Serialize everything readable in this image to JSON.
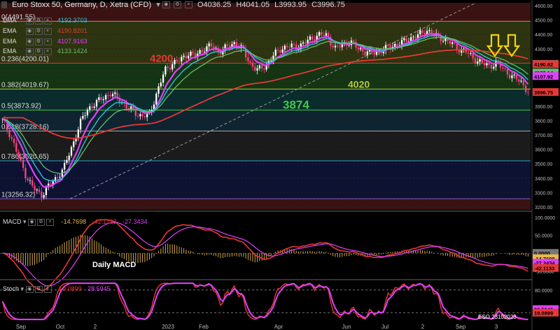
{
  "header": {
    "title": "Euro Stoxx 50, Germany, D, Xetra (CFD)",
    "open": "O4036.25",
    "high": "H4041.05",
    "low": "L3993.95",
    "close": "C3996.75"
  },
  "ema_rows": [
    {
      "label": "EMA",
      "value": "4192.3703",
      "color": "#26c6da"
    },
    {
      "label": "EMA",
      "value": "4190.8201",
      "color": "#e53935"
    },
    {
      "label": "EMA",
      "value": "4107.9163",
      "color": "#e040fb"
    },
    {
      "label": "EMA",
      "value": "4133.1424",
      "color": "#66bb6a"
    }
  ],
  "chart_data": [
    {
      "type": "candlestick",
      "pane": "price",
      "x_labels": [
        "Sep",
        "Oct",
        "2",
        "2023",
        "Feb",
        "Apr",
        "Jun",
        "Jul",
        "2",
        "Sep",
        "3"
      ],
      "y_ticks": [
        "4600.00",
        "4500.00",
        "4400.00",
        "4300.00",
        "4200.00",
        "4100.00",
        "4000.00",
        "3900.00",
        "3800.00",
        "3700.00",
        "3600.00",
        "3500.00",
        "3400.00",
        "3300.00",
        "3200.00"
      ],
      "ylim": [
        3180,
        4620
      ],
      "close_path": [
        3800,
        3700,
        3560,
        3420,
        3330,
        3280,
        3350,
        3400,
        3480,
        3620,
        3780,
        3880,
        3920,
        3960,
        3990,
        3950,
        3900,
        3860,
        3830,
        3840,
        4000,
        4150,
        4200,
        4220,
        4270,
        4250,
        4300,
        4320,
        4280,
        4310,
        4340,
        4300,
        4200,
        4150,
        4180,
        4250,
        4300,
        4320,
        4310,
        4340,
        4370,
        4400,
        4390,
        4300,
        4330,
        4350,
        4300,
        4280,
        4270,
        4290,
        4310,
        4330,
        4350,
        4380,
        4400,
        4430,
        4390,
        4370,
        4340,
        4300,
        4280,
        4230,
        4200,
        4180,
        4200,
        4150,
        4100,
        4080,
        3996.75
      ],
      "fib_levels": [
        {
          "ratio": "0.236",
          "value": "(4200.01)",
          "price": 4200.01
        },
        {
          "ratio": "0.382",
          "value": "(4019.67)",
          "price": 4019.67
        },
        {
          "ratio": "0.5",
          "value": "(3873.92)",
          "price": 3873.92
        },
        {
          "ratio": "0.618",
          "value": "(3728.16)",
          "price": 3728.16
        },
        {
          "ratio": "0.786",
          "value": "(3520.65)",
          "price": 3520.65
        },
        {
          "ratio": "1",
          "value": "(3256.32)",
          "price": 3256.32
        },
        {
          "ratio": "0",
          "value": "(4491.55)",
          "price": 4491.55
        }
      ],
      "annotations": [
        {
          "text": "4200",
          "color": "#e53935",
          "price": 4200
        },
        {
          "text": "4020",
          "color": "#b5c935",
          "price": 4020
        },
        {
          "text": "3874",
          "color": "#43c94a",
          "price": 3874
        }
      ],
      "price_tags": [
        {
          "value": "4192.37",
          "color": "#26c6da"
        },
        {
          "value": "4190.82",
          "color": "#e53935"
        },
        {
          "value": "4133.14",
          "color": "#66bb6a"
        },
        {
          "value": "4107.92",
          "color": "#e040fb"
        },
        {
          "value": "3996.75",
          "color": "#e53935"
        }
      ]
    },
    {
      "type": "histogram-line",
      "pane": "macd",
      "title": "Daily MACD",
      "label": "MACD",
      "values_header": [
        "-14.7698",
        "-42.1133",
        "-27.3434"
      ],
      "y_ticks": [
        "100.0000",
        "50.0000",
        "0.0000",
        "-50.0000"
      ],
      "ylim": [
        -70,
        110
      ],
      "tags": [
        {
          "value": "0.0000",
          "color": "#777777"
        },
        {
          "value": "-14.7698",
          "color": "#e8b84b"
        },
        {
          "value": "-27.3434",
          "color": "#e040fb"
        },
        {
          "value": "-42.1133",
          "color": "#e53935"
        }
      ]
    },
    {
      "type": "line",
      "pane": "stoch",
      "label": "Stoch",
      "values_header": [
        "19.0899",
        "28.5945"
      ],
      "y_ticks": [
        "80.0000",
        "20.0000"
      ],
      "ylim": [
        0,
        100
      ],
      "tags": [
        {
          "value": "28.5945",
          "color": "#e040fb"
        },
        {
          "value": "19.0899",
          "color": "#e53935"
        }
      ]
    }
  ],
  "footer": {
    "stamp": "ESO 23102023"
  }
}
